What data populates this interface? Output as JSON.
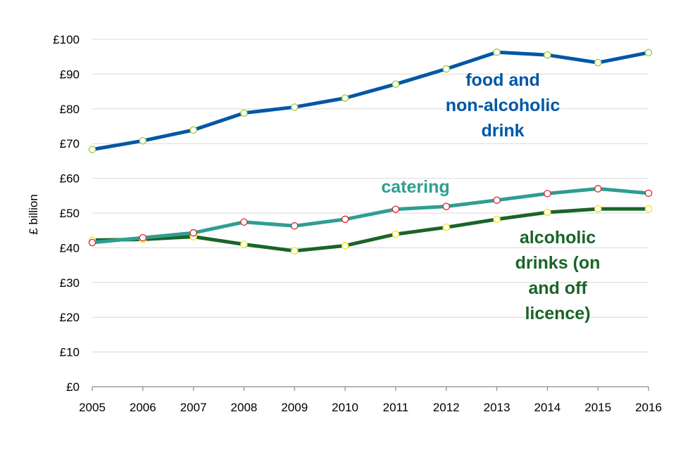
{
  "chart_data": {
    "type": "line",
    "title": "",
    "xlabel": "",
    "ylabel": "£ billion",
    "x": [
      2005,
      2006,
      2007,
      2008,
      2009,
      2010,
      2011,
      2012,
      2013,
      2014,
      2015,
      2016
    ],
    "x_tick_labels": [
      "2005",
      "2006",
      "2007",
      "2008",
      "2009",
      "2010",
      "2011",
      "2012",
      "2013",
      "2014",
      "2015",
      "2016"
    ],
    "ylim": [
      0,
      100
    ],
    "y_tick_labels": [
      "£0",
      "£10",
      "£20",
      "£30",
      "£40",
      "£50",
      "£60",
      "£70",
      "£80",
      "£90",
      "£100"
    ],
    "y_tick_values": [
      0,
      10,
      20,
      30,
      40,
      50,
      60,
      70,
      80,
      90,
      100
    ],
    "grid": true,
    "series": [
      {
        "name": "food and non-alcoholic drink",
        "label_lines": [
          "food and",
          "non-alcoholic",
          "drink"
        ],
        "color": "#0057a5",
        "marker_color": "#9acd32",
        "values": [
          68.3,
          70.8,
          73.9,
          78.8,
          80.5,
          83.1,
          87.1,
          91.5,
          96.3,
          95.5,
          93.3,
          96.2
        ]
      },
      {
        "name": "catering",
        "label_lines": [
          "catering"
        ],
        "color": "#2e9e91",
        "marker_color": "#d9262c",
        "values": [
          41.5,
          42.9,
          44.3,
          47.4,
          46.3,
          48.2,
          51.1,
          51.9,
          53.7,
          55.6,
          57.0,
          55.7
        ]
      },
      {
        "name": "alcoholic drinks (on and off licence)",
        "label_lines": [
          "alcoholic",
          "drinks (on",
          "and off",
          "licence)"
        ],
        "color": "#1a6428",
        "marker_color": "#f2e51b",
        "values": [
          42.2,
          42.4,
          43.2,
          41.0,
          39.1,
          40.6,
          43.9,
          45.9,
          48.2,
          50.2,
          51.2,
          51.2
        ]
      }
    ]
  }
}
